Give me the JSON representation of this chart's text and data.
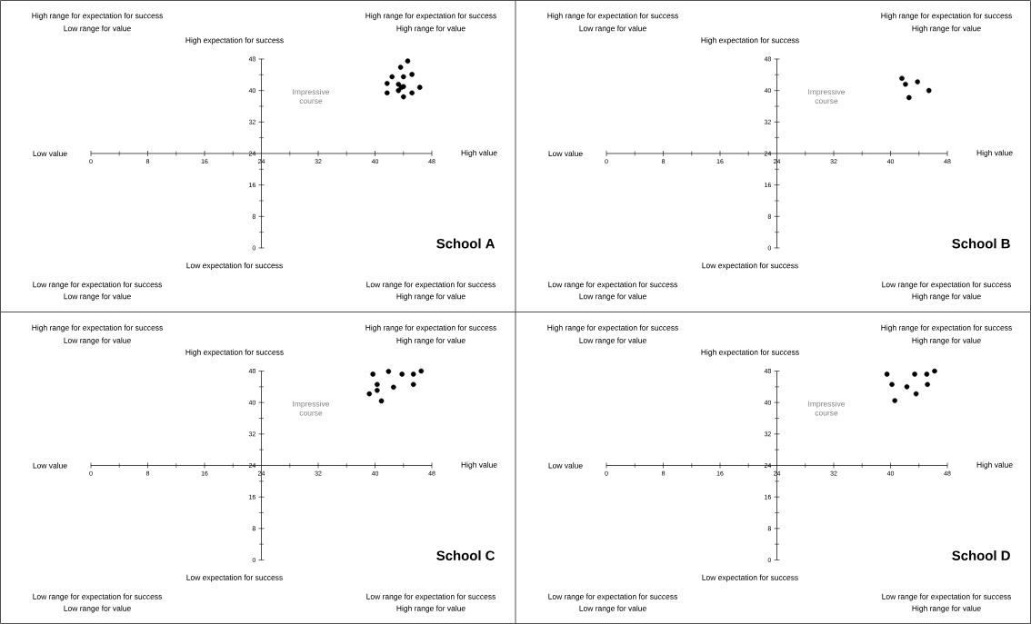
{
  "chart_data": [
    {
      "type": "scatter",
      "title": "School A",
      "xlabel": "High value",
      "ylabel": "High expectation for success",
      "color": "#000000",
      "marker": "circle",
      "xlim": [
        0,
        48
      ],
      "ylim": [
        0,
        48
      ],
      "xticks": [
        0,
        8,
        16,
        24,
        32,
        40,
        48
      ],
      "yticks": [
        0,
        8,
        16,
        24,
        32,
        40,
        48
      ],
      "x": [
        44.6,
        43.6,
        42.4,
        44.0,
        45.2,
        41.7,
        43.3,
        44.0,
        46.3,
        41.7,
        43.3,
        44.0,
        45.2,
        43.7
      ],
      "values": [
        47.5,
        45.9,
        43.5,
        43.5,
        44.1,
        41.8,
        41.6,
        41.0,
        40.8,
        39.4,
        40.0,
        38.4,
        39.4,
        40.8
      ],
      "annotations": [
        "High range for expectation for success",
        "Low range for value",
        "High range for expectation for success",
        "High range for value",
        "Low range for expectation for success",
        "Low range for value",
        "Low range for expectation for success",
        "High range for value",
        "Impressive course",
        "Low value",
        "Low expectation for success"
      ]
    },
    {
      "type": "scatter",
      "title": "School B",
      "xlabel": "High value",
      "ylabel": "High expectation for success",
      "color": "#000000",
      "marker": "circle",
      "xlim": [
        0,
        48
      ],
      "ylim": [
        0,
        48
      ],
      "xticks": [
        0,
        8,
        16,
        24,
        32,
        40,
        48
      ],
      "yticks": [
        0,
        8,
        16,
        24,
        32,
        40,
        48
      ],
      "x": [
        41.6,
        42.1,
        43.8,
        45.4,
        42.6
      ],
      "values": [
        43.1,
        41.6,
        42.2,
        40.0,
        38.2
      ],
      "annotations": [
        "High range for expectation for success",
        "Low range for value",
        "High range for expectation for success",
        "High range for value",
        "Low range for expectation for success",
        "Low range for value",
        "Low range for expectation for success",
        "High range for value",
        "Impressive course",
        "Low value",
        "Low expectation for success"
      ]
    },
    {
      "type": "scatter",
      "title": "School C",
      "xlabel": "High value",
      "ylabel": "High expectation for success",
      "color": "#000000",
      "marker": "circle",
      "xlim": [
        0,
        48
      ],
      "ylim": [
        0,
        48
      ],
      "xticks": [
        0,
        8,
        16,
        24,
        32,
        40,
        48
      ],
      "yticks": [
        0,
        8,
        16,
        24,
        32,
        40,
        48
      ],
      "x": [
        39.7,
        41.9,
        43.8,
        45.4,
        46.5,
        40.3,
        40.3,
        39.2,
        42.6,
        45.4,
        40.9
      ],
      "values": [
        47.2,
        47.9,
        47.2,
        47.2,
        48,
        44.6,
        43.1,
        42.2,
        43.9,
        44.6,
        40.4
      ],
      "annotations": [
        "High range for expectation for success",
        "Low range for value",
        "High range for expectation for success",
        "High range for value",
        "Low range for expectation for success",
        "Low range for value",
        "Low range for expectation for success",
        "High range for value",
        "Impressive course",
        "Low value",
        "Low expectation for success"
      ]
    },
    {
      "type": "scatter",
      "title": "School D",
      "xlabel": "High value",
      "ylabel": "High expectation for success",
      "color": "#000000",
      "marker": "circle",
      "xlim": [
        0,
        48
      ],
      "ylim": [
        0,
        48
      ],
      "xticks": [
        0,
        8,
        16,
        24,
        32,
        40,
        48
      ],
      "yticks": [
        0,
        8,
        16,
        24,
        32,
        40,
        48
      ],
      "x": [
        39.5,
        40.2,
        40.6,
        42.3,
        43.4,
        43.6,
        45.1,
        45.2,
        46.2
      ],
      "values": [
        47.2,
        44.6,
        40.5,
        44.0,
        47.2,
        42.2,
        47.2,
        44.6,
        48
      ],
      "annotations": [
        "High range for expectation for success",
        "Low range for value",
        "High range for expectation for success",
        "High range for value",
        "Low range for expectation for success",
        "Low range for value",
        "Low range for expectation for success",
        "High range for value",
        "Impressive course",
        "Low value",
        "Low expectation for success"
      ]
    }
  ]
}
